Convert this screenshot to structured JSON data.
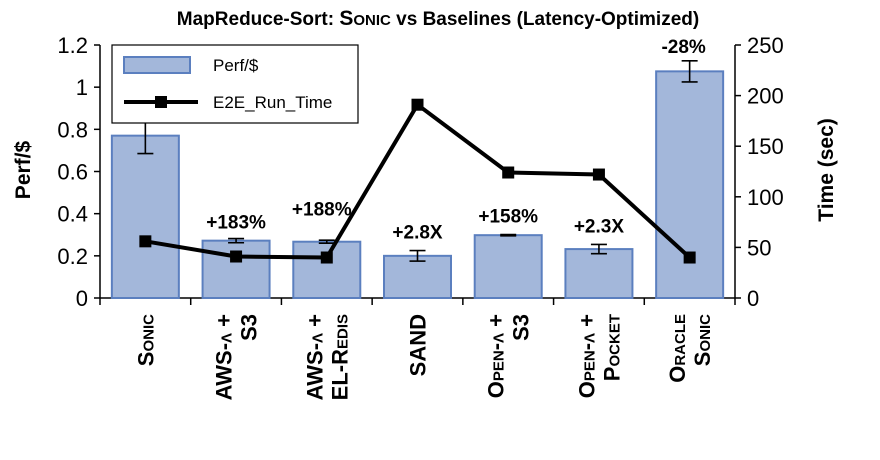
{
  "chart_data": {
    "type": "bar+line",
    "title_prefix": "MapReduce-Sort: ",
    "title_name": "Sonic",
    "title_suffix": " vs Baselines (Latency-Optimized)",
    "categories": [
      [
        "Sonic"
      ],
      [
        "AWS-λ +",
        "S3"
      ],
      [
        "AWS-λ +",
        "EL-Redis"
      ],
      [
        "SAND"
      ],
      [
        "Open-λ +",
        "S3"
      ],
      [
        "Open-λ +",
        "Pocket"
      ],
      [
        "Oracle",
        "Sonic"
      ]
    ],
    "series": [
      {
        "name": "Perf/$",
        "type": "bar",
        "axis": "left",
        "values": [
          0.77,
          0.272,
          0.267,
          0.2,
          0.298,
          0.232,
          1.075
        ],
        "error": [
          0.085,
          0.01,
          0.007,
          0.025,
          0.003,
          0.022,
          0.05
        ]
      },
      {
        "name": "E2E_Run_Time",
        "type": "line",
        "axis": "right",
        "values": [
          56,
          41,
          40,
          191,
          124,
          122,
          40
        ]
      }
    ],
    "annotations": [
      "",
      "+183%",
      "+188%",
      "+2.8X",
      "+158%",
      "+2.3X",
      "-28%"
    ],
    "ylabel_left": "Perf/$",
    "ylabel_right": "Time (sec)",
    "ylim_left": [
      0,
      1.2
    ],
    "yticks_left": [
      "0",
      "0.2",
      "0.4",
      "0.6",
      "0.8",
      "1",
      "1.2"
    ],
    "ylim_right": [
      0,
      250
    ],
    "yticks_right": [
      "0",
      "50",
      "100",
      "150",
      "200",
      "250"
    ],
    "legend_position": "top-left",
    "grid": false,
    "colors": {
      "bar_fill": "#a3b7da",
      "bar_stroke": "#5b7fbf",
      "line": "#000000"
    }
  }
}
